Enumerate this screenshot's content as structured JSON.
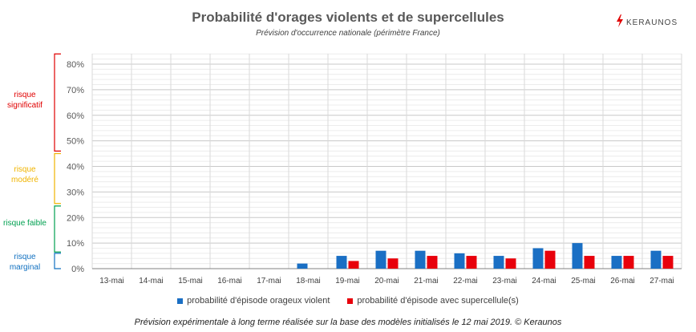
{
  "header": {
    "title": "Probabilité d'orages violents et de supercellules",
    "subtitle": "Prévision d'occurrence nationale (périmètre France)",
    "logo_text": "KERAUNOS"
  },
  "risk_levels": [
    {
      "label": "risque significatif",
      "color": "#e00000",
      "from": 0.46,
      "to": 0.84
    },
    {
      "label": "risque modéré",
      "color": "#f0b400",
      "from": 0.255,
      "to": 0.45
    },
    {
      "label": "risque faible",
      "color": "#00a050",
      "from": 0.065,
      "to": 0.245
    },
    {
      "label": "risque marginal",
      "color": "#1070c0",
      "from": 0.0,
      "to": 0.06
    }
  ],
  "footer": "Prévision expérimentale à long terme réalisée sur la base des modèles initialisés le 12 mai 2019. © Keraunos",
  "chart_data": {
    "type": "bar",
    "title": "Probabilité d'orages violents et de supercellules",
    "subtitle": "Prévision d'occurrence nationale (périmètre France)",
    "categories": [
      "13-mai",
      "14-mai",
      "15-mai",
      "16-mai",
      "17-mai",
      "18-mai",
      "19-mai",
      "20-mai",
      "21-mai",
      "22-mai",
      "23-mai",
      "24-mai",
      "25-mai",
      "26-mai",
      "27-mai"
    ],
    "series": [
      {
        "name": "probabilité d'épisode orageux violent",
        "color": "#1a6fc4",
        "values": [
          0,
          0,
          0,
          0,
          0,
          0.02,
          0.05,
          0.07,
          0.07,
          0.06,
          0.05,
          0.08,
          0.1,
          0.05,
          0.07
        ]
      },
      {
        "name": "probabilité d'épisode avec supercellule(s)",
        "color": "#e8000b",
        "values": [
          0,
          0,
          0,
          0,
          0,
          0,
          0.03,
          0.04,
          0.05,
          0.05,
          0.04,
          0.07,
          0.05,
          0.05,
          0.05
        ]
      }
    ],
    "yticks": [
      "0%",
      "10%",
      "20%",
      "30%",
      "40%",
      "50%",
      "60%",
      "70%",
      "80%"
    ],
    "ylim": [
      0,
      0.84
    ],
    "grid": true,
    "legend_position": "bottom"
  }
}
